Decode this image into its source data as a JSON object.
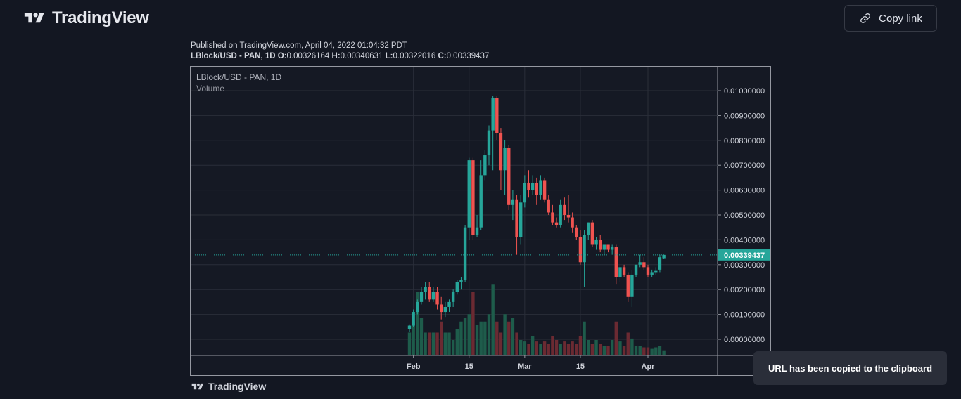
{
  "header": {
    "brand_name": "TradingView",
    "copy_link_label": "Copy link"
  },
  "meta": {
    "published": "Published on TradingView.com, April 04, 2022 01:04:32 PDT",
    "symbol_line": "LBlock/USD - PAN, 1D",
    "ohlc": [
      {
        "k": "O:",
        "v": "0.00326164"
      },
      {
        "k": "H:",
        "v": "0.00340631"
      },
      {
        "k": "L:",
        "v": "0.00322016"
      },
      {
        "k": "C:",
        "v": "0.00339437"
      }
    ]
  },
  "chart_data": {
    "type": "candlestick",
    "legend": {
      "symbol": "LBlock/USD - PAN, 1D",
      "indicator": "Volume"
    },
    "price_axis_ticks": [
      "0.01000000",
      "0.00900000",
      "0.00800000",
      "0.00700000",
      "0.00600000",
      "0.00500000",
      "0.00400000",
      "0.00300000",
      "0.00200000",
      "0.00100000",
      "0.00000000"
    ],
    "ylim": [
      0,
      0.01
    ],
    "x_ticks": [
      "Feb",
      "15",
      "Mar",
      "15",
      "Apr"
    ],
    "last_price_label": "0.00339437",
    "candles": [
      {
        "date": "2022-01-31",
        "o": 0.0004,
        "h": 0.0006,
        "l": 0.0003,
        "c": 0.00055
      },
      {
        "date": "2022-02-01",
        "o": 0.00055,
        "h": 0.0012,
        "l": 0.0005,
        "c": 0.0011
      },
      {
        "date": "2022-02-02",
        "o": 0.0011,
        "h": 0.0016,
        "l": 0.001,
        "c": 0.0015
      },
      {
        "date": "2022-02-03",
        "o": 0.0015,
        "h": 0.0021,
        "l": 0.0014,
        "c": 0.0019
      },
      {
        "date": "2022-02-04",
        "o": 0.0019,
        "h": 0.0023,
        "l": 0.0016,
        "c": 0.0021
      },
      {
        "date": "2022-02-05",
        "o": 0.0021,
        "h": 0.0023,
        "l": 0.0015,
        "c": 0.0016
      },
      {
        "date": "2022-02-06",
        "o": 0.0016,
        "h": 0.0021,
        "l": 0.0015,
        "c": 0.0019
      },
      {
        "date": "2022-02-07",
        "o": 0.0019,
        "h": 0.0021,
        "l": 0.0012,
        "c": 0.0014
      },
      {
        "date": "2022-02-08",
        "o": 0.0014,
        "h": 0.0017,
        "l": 0.0008,
        "c": 0.0011
      },
      {
        "date": "2022-02-09",
        "o": 0.0011,
        "h": 0.0015,
        "l": 0.0009,
        "c": 0.0013
      },
      {
        "date": "2022-02-10",
        "o": 0.0013,
        "h": 0.0016,
        "l": 0.0011,
        "c": 0.0015
      },
      {
        "date": "2022-02-11",
        "o": 0.0015,
        "h": 0.002,
        "l": 0.0013,
        "c": 0.0019
      },
      {
        "date": "2022-02-12",
        "o": 0.0019,
        "h": 0.0024,
        "l": 0.0018,
        "c": 0.0023
      },
      {
        "date": "2022-02-13",
        "o": 0.0023,
        "h": 0.0025,
        "l": 0.002,
        "c": 0.0024
      },
      {
        "date": "2022-02-14",
        "o": 0.0024,
        "h": 0.0046,
        "l": 0.0023,
        "c": 0.0045
      },
      {
        "date": "2022-02-15",
        "o": 0.0045,
        "h": 0.0073,
        "l": 0.004,
        "c": 0.0072
      },
      {
        "date": "2022-02-16",
        "o": 0.0072,
        "h": 0.0073,
        "l": 0.004,
        "c": 0.0042
      },
      {
        "date": "2022-02-17",
        "o": 0.0042,
        "h": 0.005,
        "l": 0.0041,
        "c": 0.0045
      },
      {
        "date": "2022-02-18",
        "o": 0.0045,
        "h": 0.0072,
        "l": 0.0044,
        "c": 0.0066
      },
      {
        "date": "2022-02-19",
        "o": 0.0066,
        "h": 0.0076,
        "l": 0.0064,
        "c": 0.0074
      },
      {
        "date": "2022-02-20",
        "o": 0.0074,
        "h": 0.0086,
        "l": 0.007,
        "c": 0.0084
      },
      {
        "date": "2022-02-21",
        "o": 0.0084,
        "h": 0.0098,
        "l": 0.0068,
        "c": 0.0097
      },
      {
        "date": "2022-02-22",
        "o": 0.0097,
        "h": 0.0098,
        "l": 0.008,
        "c": 0.0083
      },
      {
        "date": "2022-02-23",
        "o": 0.0083,
        "h": 0.0085,
        "l": 0.006,
        "c": 0.0068
      },
      {
        "date": "2022-02-24",
        "o": 0.0068,
        "h": 0.008,
        "l": 0.0058,
        "c": 0.0077
      },
      {
        "date": "2022-02-25",
        "o": 0.0077,
        "h": 0.0078,
        "l": 0.0052,
        "c": 0.0054
      },
      {
        "date": "2022-02-26",
        "o": 0.0054,
        "h": 0.006,
        "l": 0.0048,
        "c": 0.0056
      },
      {
        "date": "2022-02-27",
        "o": 0.0056,
        "h": 0.0058,
        "l": 0.0034,
        "c": 0.0041
      },
      {
        "date": "2022-02-28",
        "o": 0.0041,
        "h": 0.0058,
        "l": 0.0038,
        "c": 0.0055
      },
      {
        "date": "2022-03-01",
        "o": 0.0055,
        "h": 0.0066,
        "l": 0.0053,
        "c": 0.0063
      },
      {
        "date": "2022-03-02",
        "o": 0.0063,
        "h": 0.0068,
        "l": 0.0057,
        "c": 0.006
      },
      {
        "date": "2022-03-03",
        "o": 0.006,
        "h": 0.0066,
        "l": 0.0058,
        "c": 0.0063
      },
      {
        "date": "2022-03-04",
        "o": 0.0063,
        "h": 0.0065,
        "l": 0.0054,
        "c": 0.0058
      },
      {
        "date": "2022-03-05",
        "o": 0.0058,
        "h": 0.0066,
        "l": 0.0056,
        "c": 0.0064
      },
      {
        "date": "2022-03-06",
        "o": 0.0064,
        "h": 0.0065,
        "l": 0.0055,
        "c": 0.0056
      },
      {
        "date": "2022-03-07",
        "o": 0.0056,
        "h": 0.0058,
        "l": 0.005,
        "c": 0.0051
      },
      {
        "date": "2022-03-08",
        "o": 0.0051,
        "h": 0.0054,
        "l": 0.0046,
        "c": 0.0047
      },
      {
        "date": "2022-03-09",
        "o": 0.0047,
        "h": 0.0049,
        "l": 0.0045,
        "c": 0.0046
      },
      {
        "date": "2022-03-10",
        "o": 0.0046,
        "h": 0.0056,
        "l": 0.0045,
        "c": 0.0054
      },
      {
        "date": "2022-03-11",
        "o": 0.0054,
        "h": 0.0057,
        "l": 0.0048,
        "c": 0.005
      },
      {
        "date": "2022-03-12",
        "o": 0.005,
        "h": 0.0058,
        "l": 0.0047,
        "c": 0.0049
      },
      {
        "date": "2022-03-13",
        "o": 0.0049,
        "h": 0.0051,
        "l": 0.0043,
        "c": 0.0045
      },
      {
        "date": "2022-03-14",
        "o": 0.0045,
        "h": 0.0046,
        "l": 0.004,
        "c": 0.0041
      },
      {
        "date": "2022-03-15",
        "o": 0.0041,
        "h": 0.0044,
        "l": 0.003,
        "c": 0.0031
      },
      {
        "date": "2022-03-16",
        "o": 0.0031,
        "h": 0.0044,
        "l": 0.0021,
        "c": 0.0042
      },
      {
        "date": "2022-03-17",
        "o": 0.0042,
        "h": 0.0047,
        "l": 0.004,
        "c": 0.0047
      },
      {
        "date": "2022-03-18",
        "o": 0.0047,
        "h": 0.0048,
        "l": 0.0037,
        "c": 0.0038
      },
      {
        "date": "2022-03-19",
        "o": 0.0038,
        "h": 0.0041,
        "l": 0.0036,
        "c": 0.004
      },
      {
        "date": "2022-03-20",
        "o": 0.004,
        "h": 0.0042,
        "l": 0.0035,
        "c": 0.0036
      },
      {
        "date": "2022-03-21",
        "o": 0.0036,
        "h": 0.0038,
        "l": 0.0034,
        "c": 0.0038
      },
      {
        "date": "2022-03-22",
        "o": 0.0038,
        "h": 0.0038,
        "l": 0.0035,
        "c": 0.0036
      },
      {
        "date": "2022-03-23",
        "o": 0.0036,
        "h": 0.0038,
        "l": 0.0034,
        "c": 0.0037
      },
      {
        "date": "2022-03-24",
        "o": 0.0037,
        "h": 0.0038,
        "l": 0.0022,
        "c": 0.0025
      },
      {
        "date": "2022-03-25",
        "o": 0.0025,
        "h": 0.003,
        "l": 0.0023,
        "c": 0.0029
      },
      {
        "date": "2022-03-26",
        "o": 0.0029,
        "h": 0.003,
        "l": 0.0025,
        "c": 0.0026
      },
      {
        "date": "2022-03-27",
        "o": 0.0026,
        "h": 0.0027,
        "l": 0.0015,
        "c": 0.0017
      },
      {
        "date": "2022-03-28",
        "o": 0.0017,
        "h": 0.0028,
        "l": 0.0013,
        "c": 0.0026
      },
      {
        "date": "2022-03-29",
        "o": 0.0026,
        "h": 0.003,
        "l": 0.0025,
        "c": 0.003
      },
      {
        "date": "2022-03-30",
        "o": 0.003,
        "h": 0.0034,
        "l": 0.0029,
        "c": 0.0031
      },
      {
        "date": "2022-03-31",
        "o": 0.0031,
        "h": 0.0033,
        "l": 0.0028,
        "c": 0.0029
      },
      {
        "date": "2022-04-01",
        "o": 0.0029,
        "h": 0.003,
        "l": 0.0025,
        "c": 0.0026
      },
      {
        "date": "2022-04-02",
        "o": 0.0026,
        "h": 0.0028,
        "l": 0.0025,
        "c": 0.0027
      },
      {
        "date": "2022-04-03",
        "o": 0.0027,
        "h": 0.0029,
        "l": 0.0026,
        "c": 0.00275
      },
      {
        "date": "2022-04-04",
        "o": 0.0028,
        "h": 0.0034,
        "l": 0.0027,
        "c": 0.0033
      },
      {
        "date": "2022-04-05",
        "o": 0.00326164,
        "h": 0.00340631,
        "l": 0.00322016,
        "c": 0.00339437
      }
    ],
    "volume_relative": [
      0.3,
      0.45,
      0.85,
      0.5,
      0.3,
      0.3,
      0.3,
      0.3,
      0.45,
      0.3,
      0.3,
      0.2,
      0.35,
      0.45,
      0.5,
      0.55,
      0.85,
      0.4,
      0.45,
      0.45,
      0.55,
      0.95,
      0.45,
      0.3,
      0.55,
      0.45,
      0.5,
      0.3,
      0.2,
      0.18,
      0.15,
      0.25,
      0.18,
      0.15,
      0.18,
      0.15,
      0.25,
      0.2,
      0.15,
      0.18,
      0.15,
      0.18,
      0.15,
      0.25,
      0.45,
      0.2,
      0.15,
      0.2,
      0.15,
      0.12,
      0.12,
      0.2,
      0.45,
      0.18,
      0.12,
      0.3,
      0.22,
      0.12,
      0.12,
      0.1,
      0.1,
      0.08,
      0.1,
      0.12,
      0.06
    ],
    "colors": {
      "up": "#26a69a",
      "down": "#ef5350",
      "vol_up": "#1e5c4b",
      "vol_down": "#6b2a32",
      "grid": "#2a2e39",
      "axis_text": "#d1d4dc",
      "last_price_bg": "#26a69a"
    }
  },
  "footer": {
    "brand_name": "TradingView"
  },
  "toast": {
    "message": "URL has been copied to the clipboard"
  }
}
